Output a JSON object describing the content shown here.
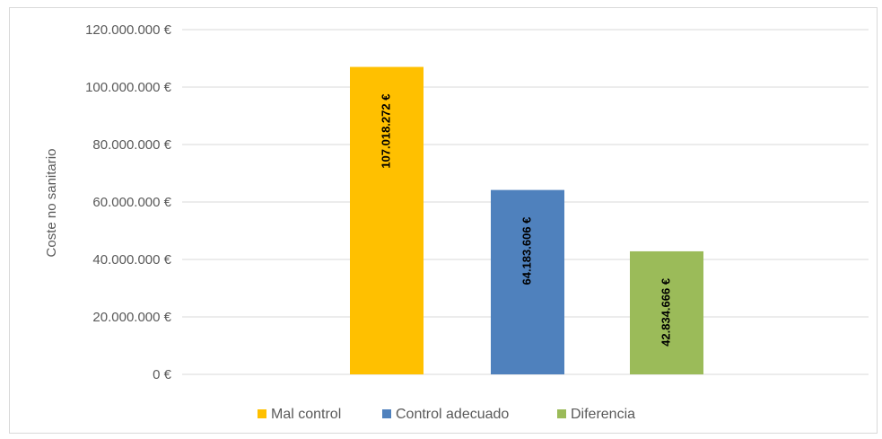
{
  "chart_data": {
    "type": "bar",
    "title": "",
    "xlabel": "",
    "ylabel": "Coste no sanitario",
    "ylim": [
      0,
      120000000
    ],
    "y_ticks": [
      0,
      20000000,
      40000000,
      60000000,
      80000000,
      100000000,
      120000000
    ],
    "y_tick_labels": [
      "0 €",
      "20.000.000 €",
      "40.000.000 €",
      "60.000.000 €",
      "80.000.000 €",
      "100.000.000 €",
      "120.000.000 €"
    ],
    "grid": true,
    "legend_position": "bottom",
    "series": [
      {
        "name": "Mal control",
        "color": "#FFC000",
        "value": 107018272,
        "label": "107.018.272 €"
      },
      {
        "name": "Control adecuado",
        "color": "#4F81BD",
        "value": 64183606,
        "label": "64.183.606 €"
      },
      {
        "name": "Diferencia",
        "color": "#9BBB59",
        "value": 42834666,
        "label": "42.834.666 €"
      }
    ]
  }
}
